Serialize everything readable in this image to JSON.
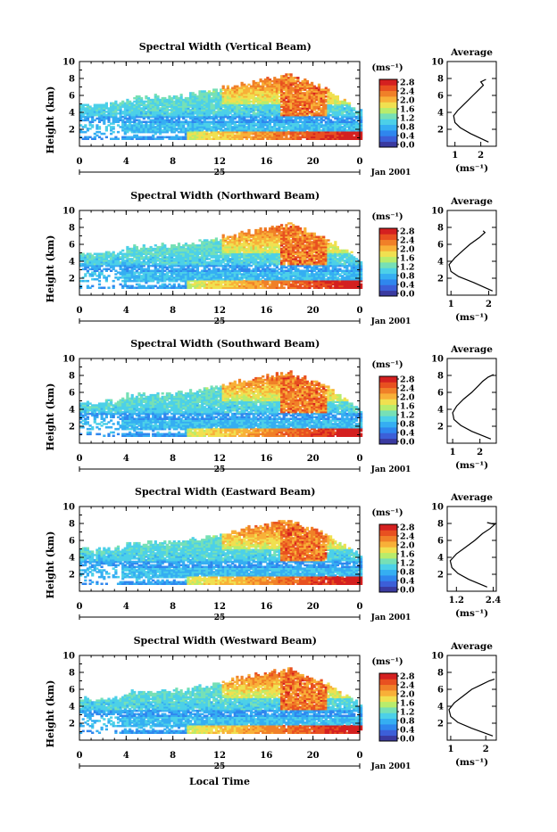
{
  "figure": {
    "xlabel_bottom": "Local Time",
    "date_label": "Jan 2001",
    "day_label": "25",
    "heatmap_ylabel": "Height (km)",
    "colorbar_unit": "(ms⁻¹)",
    "average_title": "Average",
    "average_xlabel": "(ms⁻¹)"
  },
  "colors": {
    "colorbar": [
      "#3a3aa0",
      "#3c5fd8",
      "#2f86ee",
      "#35aef2",
      "#4cd0e8",
      "#76e0b6",
      "#b8ec6c",
      "#f0e050",
      "#f8b038",
      "#f08028",
      "#e85020",
      "#d42020"
    ]
  },
  "chart_data": [
    {
      "type": "heatmap",
      "title": "Spectral Width (Vertical Beam)",
      "x_ticks": [
        "0",
        "4",
        "8",
        "12",
        "16",
        "20",
        "0"
      ],
      "xlim": [
        0,
        24
      ],
      "y_ticks": [
        "2",
        "4",
        "6",
        "8",
        "10"
      ],
      "ylim": [
        0,
        10
      ],
      "colorbar_ticks": [
        "2.8",
        "2.4",
        "2.0",
        "1.6",
        "1.2",
        "0.8",
        "0.4",
        "0.0"
      ],
      "colorbar_range": [
        0.0,
        2.8
      ],
      "average": {
        "title": "Average",
        "x_ticks": [
          "1",
          "2"
        ],
        "xlim": [
          0.7,
          2.6
        ],
        "y_ticks": [
          "2",
          "4",
          "6",
          "8",
          "10"
        ],
        "ylim": [
          0,
          10
        ],
        "x": [
          2.3,
          1.6,
          1.2,
          1.0,
          0.95,
          1.1,
          1.3,
          1.5,
          1.7,
          1.9,
          2.1,
          2.0,
          2.2
        ],
        "y": [
          0.5,
          1.5,
          2.2,
          2.8,
          3.6,
          4.2,
          4.8,
          5.4,
          6.0,
          6.6,
          7.2,
          7.6,
          7.9
        ]
      }
    },
    {
      "type": "heatmap",
      "title": "Spectral Width (Northward Beam)",
      "x_ticks": [
        "0",
        "4",
        "8",
        "12",
        "16",
        "20",
        "0"
      ],
      "xlim": [
        0,
        24
      ],
      "y_ticks": [
        "2",
        "4",
        "6",
        "8",
        "10"
      ],
      "ylim": [
        0,
        10
      ],
      "colorbar_ticks": [
        "2.8",
        "2.4",
        "2.0",
        "1.6",
        "1.2",
        "0.8",
        "0.4",
        "0.0"
      ],
      "colorbar_range": [
        0.0,
        2.8
      ],
      "average": {
        "title": "Average",
        "x_ticks": [
          "1",
          "2"
        ],
        "xlim": [
          0.9,
          2.2
        ],
        "y_ticks": [
          "2",
          "4",
          "6",
          "8",
          "10"
        ],
        "ylim": [
          0,
          10
        ],
        "x": [
          2.1,
          1.6,
          1.2,
          1.0,
          0.95,
          1.1,
          1.3,
          1.5,
          1.75,
          1.9,
          1.85
        ],
        "y": [
          0.5,
          1.5,
          2.2,
          2.8,
          3.6,
          4.4,
          5.2,
          6.0,
          6.8,
          7.4,
          7.6
        ]
      }
    },
    {
      "type": "heatmap",
      "title": "Spectral Width (Southward Beam)",
      "x_ticks": [
        "0",
        "4",
        "8",
        "12",
        "16",
        "20",
        "0"
      ],
      "xlim": [
        0,
        24
      ],
      "y_ticks": [
        "2",
        "4",
        "6",
        "8",
        "10"
      ],
      "ylim": [
        0,
        10
      ],
      "colorbar_ticks": [
        "2.8",
        "2.4",
        "2.0",
        "1.6",
        "1.2",
        "0.8",
        "0.4",
        "0.0"
      ],
      "colorbar_range": [
        0.0,
        2.8
      ],
      "average": {
        "title": "Average",
        "x_ticks": [
          "1",
          "2"
        ],
        "xlim": [
          0.8,
          2.6
        ],
        "y_ticks": [
          "2",
          "4",
          "6",
          "8",
          "10"
        ],
        "ylim": [
          0,
          10
        ],
        "x": [
          2.4,
          1.7,
          1.3,
          1.05,
          1.0,
          1.15,
          1.4,
          1.7,
          1.95,
          2.1,
          2.3,
          2.5
        ],
        "y": [
          0.5,
          1.4,
          2.1,
          2.8,
          3.6,
          4.4,
          5.2,
          6.0,
          6.8,
          7.3,
          7.8,
          8.1
        ]
      }
    },
    {
      "type": "heatmap",
      "title": "Spectral Width (Eastward Beam)",
      "x_ticks": [
        "0",
        "4",
        "8",
        "12",
        "16",
        "20",
        "0"
      ],
      "xlim": [
        0,
        24
      ],
      "y_ticks": [
        "2",
        "4",
        "6",
        "8",
        "10"
      ],
      "ylim": [
        0,
        10
      ],
      "colorbar_ticks": [
        "2.8",
        "2.4",
        "2.0",
        "1.6",
        "1.2",
        "0.8",
        "0.4",
        "0.0"
      ],
      "colorbar_range": [
        0.0,
        2.8
      ],
      "average": {
        "title": "Average",
        "x_ticks": [
          "1.2",
          "2.4"
        ],
        "xlim": [
          0.9,
          2.5
        ],
        "y_ticks": [
          "2",
          "4",
          "6",
          "8",
          "10"
        ],
        "ylim": [
          0,
          10
        ],
        "x": [
          2.2,
          1.6,
          1.25,
          1.05,
          1.0,
          1.2,
          1.5,
          1.8,
          2.05,
          2.3,
          2.45,
          2.2
        ],
        "y": [
          0.5,
          1.4,
          2.1,
          2.8,
          3.6,
          4.4,
          5.2,
          6.0,
          6.8,
          7.4,
          7.9,
          8.1
        ]
      }
    },
    {
      "type": "heatmap",
      "title": "Spectral Width (Westward Beam)",
      "x_ticks": [
        "0",
        "4",
        "8",
        "12",
        "16",
        "20",
        "0"
      ],
      "xlim": [
        0,
        24
      ],
      "y_ticks": [
        "2",
        "4",
        "6",
        "8",
        "10"
      ],
      "ylim": [
        0,
        10
      ],
      "colorbar_ticks": [
        "2.8",
        "2.4",
        "2.0",
        "1.6",
        "1.2",
        "0.8",
        "0.4",
        "0.0"
      ],
      "colorbar_range": [
        0.0,
        2.8
      ],
      "average": {
        "title": "Average",
        "x_ticks": [
          "1",
          "2"
        ],
        "xlim": [
          0.9,
          2.3
        ],
        "y_ticks": [
          "2",
          "4",
          "6",
          "8",
          "10"
        ],
        "ylim": [
          0,
          10
        ],
        "x": [
          2.2,
          1.6,
          1.2,
          1.0,
          0.95,
          1.1,
          1.35,
          1.6,
          1.9,
          2.1,
          2.25
        ],
        "y": [
          0.5,
          1.4,
          2.1,
          2.8,
          3.6,
          4.4,
          5.2,
          6.0,
          6.6,
          7.0,
          7.2
        ]
      }
    }
  ]
}
